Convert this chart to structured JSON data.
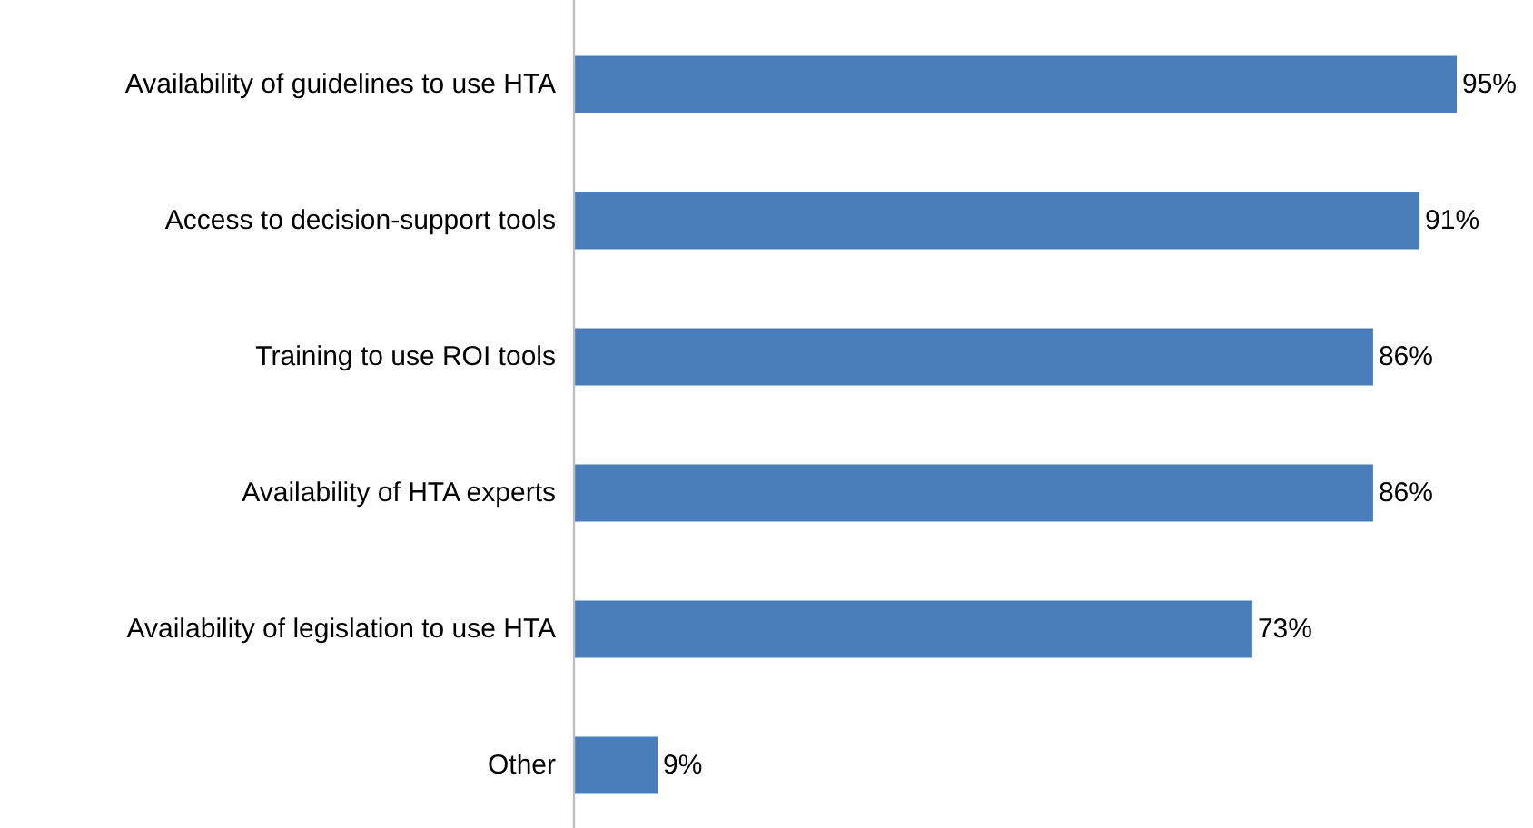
{
  "chart_data": {
    "type": "bar",
    "orientation": "horizontal",
    "categories": [
      "Availability of guidelines to use HTA",
      "Access to decision-support tools",
      "Training to use ROI tools",
      "Availability of HTA experts",
      "Availability of legislation to use HTA",
      "Other"
    ],
    "values": [
      95,
      91,
      86,
      86,
      73,
      9
    ],
    "value_labels": [
      "95%",
      "91%",
      "86%",
      "86%",
      "73%",
      "9%"
    ],
    "color": "#4a7ebb"
  }
}
